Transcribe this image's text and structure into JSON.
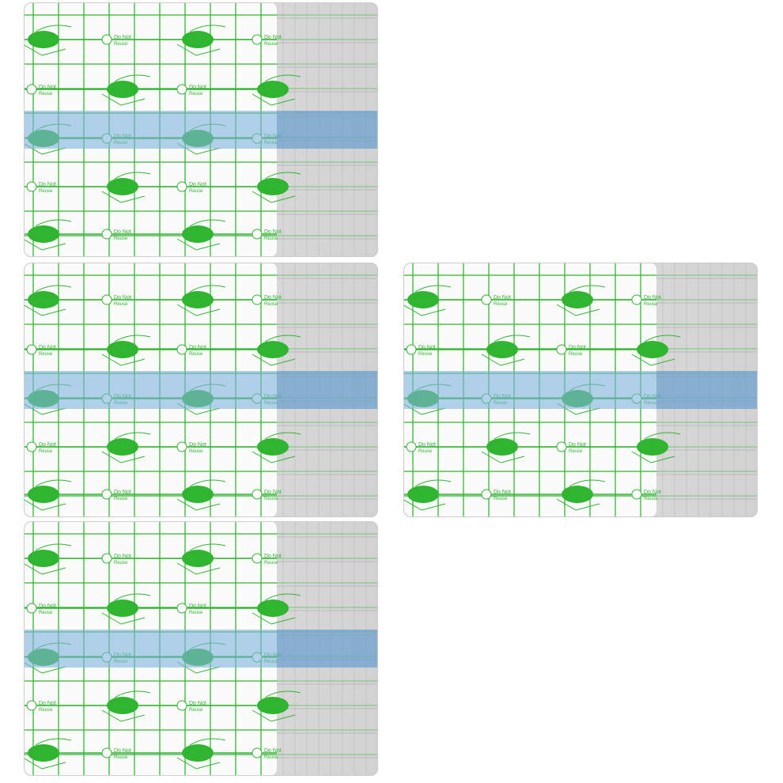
{
  "product_label": {
    "line1": "Do Not",
    "line2": "Reuse"
  }
}
